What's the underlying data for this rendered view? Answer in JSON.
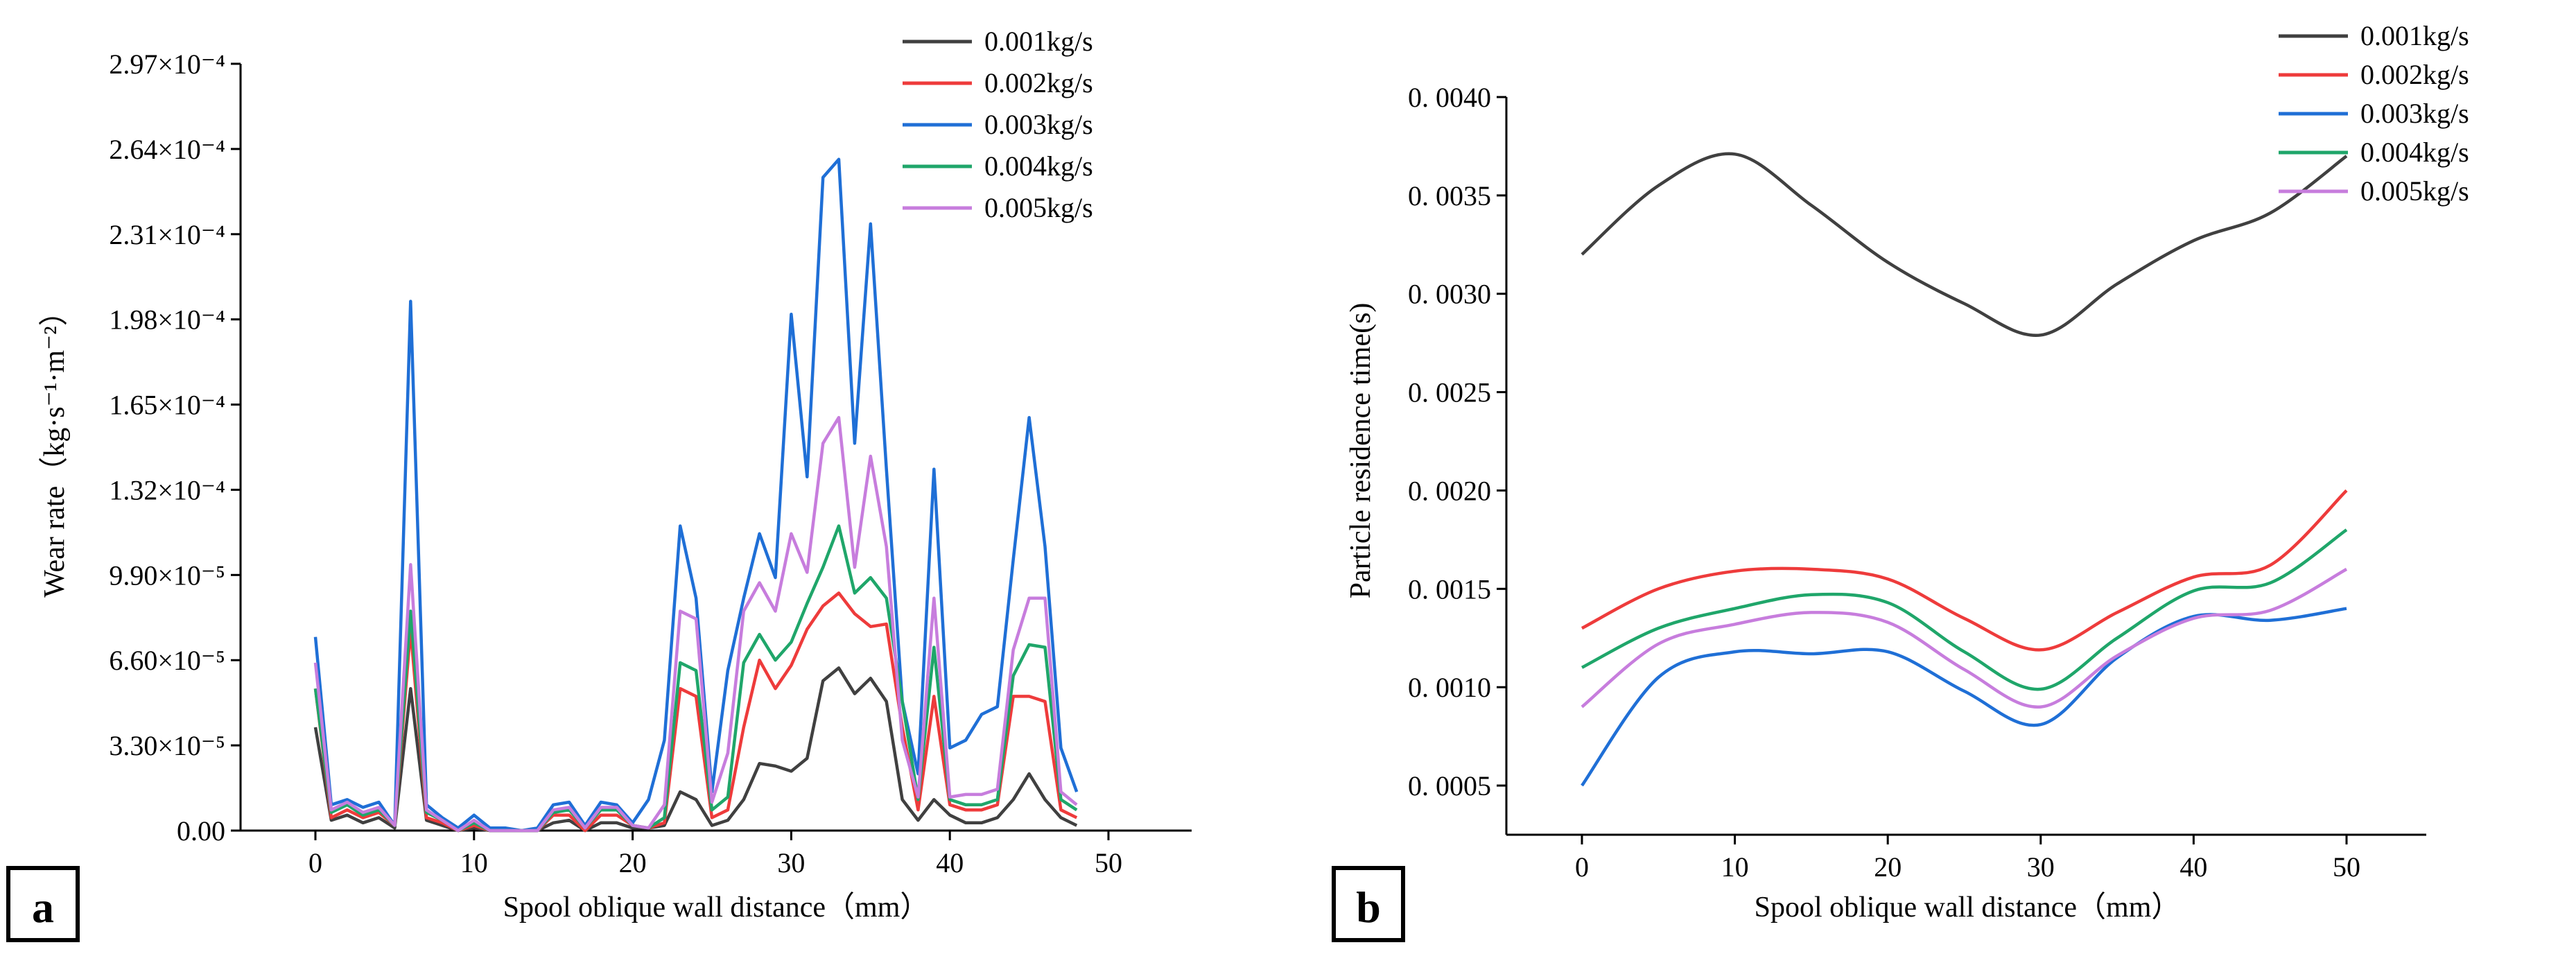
{
  "chart_data": [
    {
      "panel": "a",
      "type": "line",
      "xlabel": "Spool oblique wall distance（mm）",
      "ylabel": "Wear rate（kg·s⁻¹·m⁻²）",
      "xlim": [
        -5,
        55
      ],
      "ylim": [
        0,
        0.000297
      ],
      "xticks": [
        0,
        10,
        20,
        30,
        40,
        50
      ],
      "xtick_labels": [
        "0",
        "10",
        "20",
        "30",
        "40",
        "50"
      ],
      "yticks": [
        0,
        3.3e-05,
        6.6e-05,
        9.9e-05,
        0.000132,
        0.000165,
        0.000198,
        0.000231,
        0.000264,
        0.000297
      ],
      "ytick_labels": [
        "0.00",
        "3.30×10⁻⁵",
        "6.60×10⁻⁵",
        "9.90×10⁻⁵",
        "1.32×10⁻⁴",
        "1.65×10⁻⁴",
        "1.98×10⁻⁴",
        "2.31×10⁻⁴",
        "2.64×10⁻⁴",
        "2.97×10⁻⁴"
      ],
      "legend_position": "top-right",
      "x": [
        0,
        1,
        2,
        3,
        4,
        5,
        6,
        7,
        8,
        9,
        10,
        11,
        12,
        13,
        14,
        15,
        16,
        17,
        18,
        19,
        20,
        21,
        22,
        23,
        24,
        25,
        26,
        27,
        28,
        29,
        30,
        31,
        32,
        33,
        34,
        35,
        36,
        37,
        38,
        39,
        40,
        41,
        42,
        43,
        44,
        45,
        46,
        47,
        48
      ],
      "series": [
        {
          "name": "0.001kg/s",
          "color": "#404040",
          "values": [
            4e-05,
            4e-06,
            6e-06,
            3e-06,
            5e-06,
            1e-06,
            5.5e-05,
            4e-06,
            2e-06,
            0,
            1e-06,
            0,
            0,
            0,
            0,
            3e-06,
            4e-06,
            0,
            3e-06,
            3e-06,
            1e-06,
            1e-06,
            2e-06,
            1.5e-05,
            1.2e-05,
            2e-06,
            4e-06,
            1.2e-05,
            2.6e-05,
            2.5e-05,
            2.3e-05,
            2.8e-05,
            5.8e-05,
            6.3e-05,
            5.3e-05,
            5.9e-05,
            5e-05,
            1.2e-05,
            4e-06,
            1.2e-05,
            6e-06,
            3e-06,
            3e-06,
            5e-06,
            1.2e-05,
            2.2e-05,
            1.2e-05,
            5e-06,
            2e-06
          ]
        },
        {
          "name": "0.002kg/s",
          "color": "#ee3b3b",
          "values": [
            5.5e-05,
            5e-06,
            8e-06,
            5e-06,
            7e-06,
            2e-06,
            7.8e-05,
            5e-06,
            3e-06,
            0,
            2e-06,
            0,
            0,
            0,
            0,
            6e-06,
            6e-06,
            0,
            6e-06,
            6e-06,
            2e-06,
            1e-06,
            3e-06,
            5.5e-05,
            5.2e-05,
            5e-06,
            8e-06,
            4e-05,
            6.6e-05,
            5.5e-05,
            6.4e-05,
            7.8e-05,
            8.7e-05,
            9.2e-05,
            8.4e-05,
            7.9e-05,
            8e-05,
            4e-05,
            8e-06,
            5.2e-05,
            1e-05,
            8e-06,
            8e-06,
            1e-05,
            5.2e-05,
            5.2e-05,
            5e-05,
            8e-06,
            5e-06
          ]
        },
        {
          "name": "0.003kg/s",
          "color": "#1f6fd6",
          "values": [
            7.5e-05,
            1e-05,
            1.2e-05,
            9e-06,
            1.1e-05,
            2e-06,
            0.000205,
            1e-05,
            5e-06,
            1e-06,
            6e-06,
            1e-06,
            1e-06,
            0,
            1e-06,
            1e-05,
            1.1e-05,
            2e-06,
            1.1e-05,
            1e-05,
            3e-06,
            1.2e-05,
            3.5e-05,
            0.000118,
            9e-05,
            1.5e-05,
            6.2e-05,
            9e-05,
            0.000115,
            9.8e-05,
            0.0002,
            0.000137,
            0.000253,
            0.00026,
            0.00015,
            0.000235,
            0.00014,
            5e-05,
            2.2e-05,
            0.00014,
            3.2e-05,
            3.5e-05,
            4.5e-05,
            4.8e-05,
            0.000105,
            0.00016,
            0.00011,
            3.2e-05,
            1.5e-05
          ]
        },
        {
          "name": "0.004kg/s",
          "color": "#1fa66a",
          "values": [
            5.5e-05,
            7e-06,
            1e-05,
            6e-06,
            8e-06,
            2e-06,
            8.5e-05,
            7e-06,
            4e-06,
            0,
            3e-06,
            0,
            0,
            0,
            0,
            7e-06,
            8e-06,
            1e-06,
            8e-06,
            8e-06,
            2e-06,
            1e-06,
            5e-06,
            6.5e-05,
            6.2e-05,
            8e-06,
            1.3e-05,
            6.5e-05,
            7.6e-05,
            6.6e-05,
            7.3e-05,
            8.8e-05,
            0.000102,
            0.000118,
            9.2e-05,
            9.8e-05,
            9e-05,
            5e-05,
            1.2e-05,
            7.1e-05,
            1.2e-05,
            1e-05,
            1e-05,
            1.2e-05,
            6e-05,
            7.2e-05,
            7.1e-05,
            1.2e-05,
            8e-06
          ]
        },
        {
          "name": "0.005kg/s",
          "color": "#c77ddd",
          "values": [
            6.5e-05,
            8e-06,
            1.1e-05,
            7e-06,
            9e-06,
            2e-06,
            0.000103,
            8e-06,
            4e-06,
            0,
            4e-06,
            0,
            0,
            0,
            0,
            8e-06,
            9e-06,
            1e-06,
            9e-06,
            9e-06,
            2e-06,
            1e-06,
            1e-05,
            8.5e-05,
            8.2e-05,
            1.1e-05,
            3e-05,
            8.5e-05,
            9.6e-05,
            8.5e-05,
            0.000115,
            0.0001,
            0.00015,
            0.00016,
            0.000102,
            0.000145,
            0.00011,
            3.5e-05,
            1.3e-05,
            9e-05,
            1.3e-05,
            1.4e-05,
            1.4e-05,
            1.6e-05,
            7e-05,
            9e-05,
            9e-05,
            1.5e-05,
            1e-05
          ]
        }
      ]
    },
    {
      "panel": "b",
      "type": "line",
      "xlabel": "Spool oblique wall distance（mm）",
      "ylabel": "Particle residence time(s)",
      "xlim": [
        -5,
        55
      ],
      "ylim": [
        0.00025,
        0.004
      ],
      "xticks": [
        0,
        10,
        20,
        30,
        40,
        50
      ],
      "xtick_labels": [
        "0",
        "10",
        "20",
        "30",
        "40",
        "50"
      ],
      "yticks": [
        0.0005,
        0.001,
        0.0015,
        0.002,
        0.0025,
        0.003,
        0.0035,
        0.004
      ],
      "ytick_labels": [
        "0. 0005",
        "0. 0010",
        "0. 0015",
        "0. 0020",
        "0. 0025",
        "0. 0030",
        "0. 0035",
        "0. 0040"
      ],
      "legend_position": "top-right",
      "x": [
        0,
        5,
        10,
        15,
        20,
        25,
        30,
        35,
        40,
        45,
        50
      ],
      "series": [
        {
          "name": "0.001kg/s",
          "color": "#404040",
          "values": [
            0.0032,
            0.00355,
            0.00371,
            0.00345,
            0.00316,
            0.00295,
            0.00279,
            0.00305,
            0.00327,
            0.00341,
            0.0037
          ]
        },
        {
          "name": "0.002kg/s",
          "color": "#ee3b3b",
          "values": [
            0.0013,
            0.0015,
            0.00159,
            0.0016,
            0.00155,
            0.00135,
            0.00119,
            0.00138,
            0.00156,
            0.00162,
            0.002
          ]
        },
        {
          "name": "0.003kg/s",
          "color": "#1f6fd6",
          "values": [
            0.0005,
            0.00105,
            0.00118,
            0.00117,
            0.00118,
            0.00098,
            0.00081,
            0.00115,
            0.00136,
            0.00134,
            0.0014
          ]
        },
        {
          "name": "0.004kg/s",
          "color": "#1fa66a",
          "values": [
            0.0011,
            0.0013,
            0.0014,
            0.00147,
            0.00143,
            0.00118,
            0.00099,
            0.00125,
            0.00149,
            0.00153,
            0.0018
          ]
        },
        {
          "name": "0.005kg/s",
          "color": "#c77ddd",
          "values": [
            0.0009,
            0.00122,
            0.00132,
            0.00138,
            0.00133,
            0.00109,
            0.0009,
            0.00116,
            0.00135,
            0.00139,
            0.0016
          ]
        }
      ]
    }
  ]
}
